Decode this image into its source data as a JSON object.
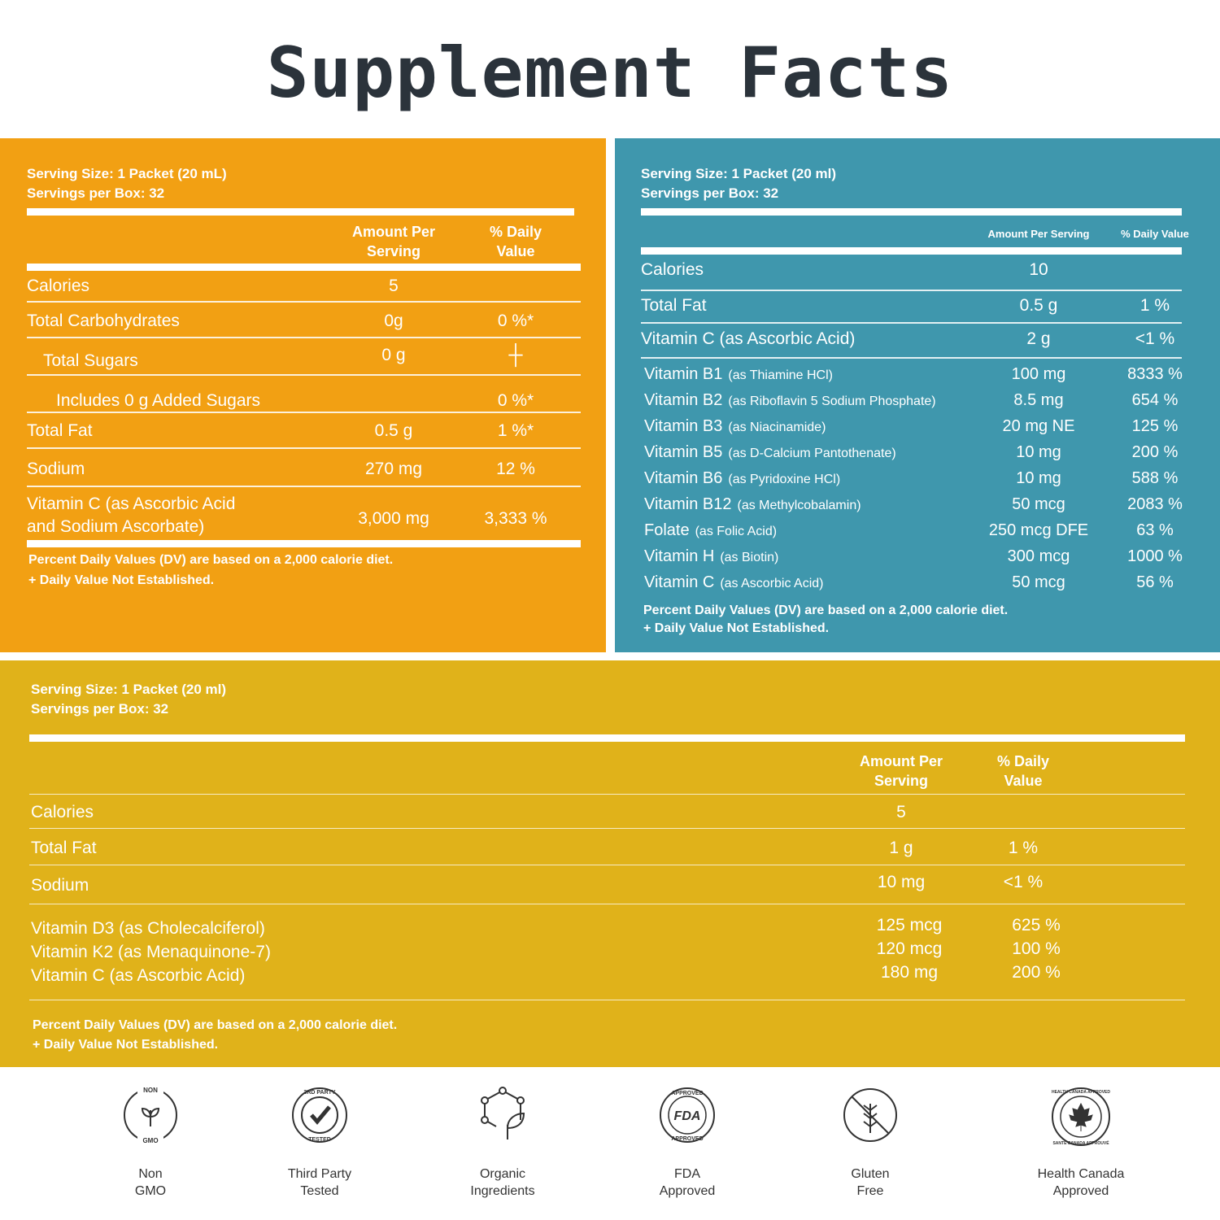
{
  "title": "Supplement Facts",
  "colors": {
    "orange": "#f2a013",
    "blue": "#3f97ad",
    "yellow": "#e0b21a",
    "title": "#2b333b"
  },
  "panel1": {
    "serving_size": "Serving Size: 1 Packet (20 mL)",
    "servings_per_box": "Servings per Box: 32",
    "col_amount": [
      "Amount Per",
      "Serving"
    ],
    "col_dv": [
      "% Daily",
      "Value"
    ],
    "rows": [
      {
        "name": "Calories",
        "amount": "5",
        "dv": ""
      },
      {
        "name": "Total Carbohydrates",
        "amount": "0g",
        "dv": "0 %*"
      },
      {
        "name": "Total Sugars",
        "amount": "0 g",
        "dv": "┼"
      },
      {
        "name": "Includes 0 g Added Sugars",
        "amount": "",
        "dv": "0 %*"
      },
      {
        "name": "Total Fat",
        "amount": "0.5 g",
        "dv": "1 %*"
      },
      {
        "name": "Sodium",
        "amount": "270 mg",
        "dv": "12 %"
      },
      {
        "name": [
          "Vitamin C (as Ascorbic Acid",
          "and Sodium Ascorbate)"
        ],
        "amount": "3,000 mg",
        "dv": "3,333 %"
      }
    ],
    "footnote": [
      "Percent Daily Values (DV) are based on a 2,000 calorie diet.",
      "+ Daily Value Not Established."
    ]
  },
  "panel2": {
    "serving_size": "Serving Size: 1 Packet  (20 ml)",
    "servings_per_box": "Servings per Box: 32",
    "col_amount": "Amount Per Serving",
    "col_dv": "% Daily Value",
    "rows": [
      {
        "name": "Calories",
        "amount": "10",
        "dv": ""
      },
      {
        "name": "Total Fat",
        "amount": "0.5 g",
        "dv": "1 %"
      },
      {
        "name": "Vitamin C (as Ascorbic Acid)",
        "amount": "2 g",
        "dv": "<1 %"
      }
    ],
    "vitamins": [
      {
        "name": "Vitamin B1",
        "detail": "(as Thiamine HCl)",
        "amount": "100 mg",
        "dv": "8333 %"
      },
      {
        "name": "Vitamin B2",
        "detail": "(as Riboflavin 5 Sodium Phosphate)",
        "amount": "8.5 mg",
        "dv": "654 %"
      },
      {
        "name": "Vitamin B3",
        "detail": "(as Niacinamide)",
        "amount": "20 mg NE",
        "dv": "125 %"
      },
      {
        "name": "Vitamin B5",
        "detail": "(as D-Calcium Pantothenate)",
        "amount": "10 mg",
        "dv": "200 %"
      },
      {
        "name": "Vitamin B6",
        "detail": "(as Pyridoxine HCl)",
        "amount": "10 mg",
        "dv": "588 %"
      },
      {
        "name": "Vitamin B12",
        "detail": "(as Methylcobalamin)",
        "amount": "50 mcg",
        "dv": "2083 %"
      },
      {
        "name": "Folate",
        "detail": "(as Folic Acid)",
        "amount": "250 mcg DFE",
        "dv": "63 %"
      },
      {
        "name": "Vitamin H",
        "detail": "(as Biotin)",
        "amount": "300 mcg",
        "dv": "1000 %"
      },
      {
        "name": "Vitamin C",
        "detail": "(as Ascorbic Acid)",
        "amount": "50 mcg",
        "dv": "56 %"
      }
    ],
    "footnote": [
      "Percent Daily Values (DV) are based on a 2,000 calorie diet.",
      "+ Daily Value Not Established."
    ]
  },
  "panel3": {
    "serving_size": "Serving Size: 1 Packet (20 ml)",
    "servings_per_box": "Servings per Box: 32",
    "col_amount": [
      "Amount Per",
      "Serving"
    ],
    "col_dv": [
      "% Daily",
      "Value"
    ],
    "rows": [
      {
        "name": "Calories",
        "amount": "5",
        "dv": ""
      },
      {
        "name": "Total Fat",
        "amount": "1 g",
        "dv": "1 %"
      },
      {
        "name": "Sodium",
        "amount": "10 mg",
        "dv": "<1 %"
      }
    ],
    "vitamins": [
      {
        "name": "Vitamin D3 (as Cholecalciferol)",
        "amount": "125 mcg",
        "dv": "625 %"
      },
      {
        "name": "Vitamin K2 (as Menaquinone-7)",
        "amount": "120 mcg",
        "dv": "100 %"
      },
      {
        "name": "Vitamin C (as Ascorbic Acid)",
        "amount": "180 mg",
        "dv": "200 %"
      }
    ],
    "footnote": [
      "Percent Daily Values (DV) are based on a 2,000 calorie diet.",
      "+ Daily Value Not Established."
    ]
  },
  "badges": [
    {
      "icon": "non-gmo-icon",
      "lines": [
        "Non",
        "GMO"
      ],
      "ring_top": "NON",
      "ring_bottom": "GMO"
    },
    {
      "icon": "third-party-tested-icon",
      "lines": [
        "Third Party",
        "Tested"
      ],
      "ring_top": "3RD PARTY",
      "ring_bottom": "TESTED"
    },
    {
      "icon": "organic-ingredients-icon",
      "lines": [
        "Organic",
        "Ingredients"
      ]
    },
    {
      "icon": "fda-approved-icon",
      "lines": [
        "FDA",
        "Approved"
      ],
      "ring_top": "APPROVED",
      "ring_bottom": "APPROVED",
      "center": "FDA"
    },
    {
      "icon": "gluten-free-icon",
      "lines": [
        "Gluten",
        "Free"
      ]
    },
    {
      "icon": "health-canada-icon",
      "lines": [
        "Health Canada",
        "Approved"
      ],
      "ring_top": "HEALTH CANADA APPROVED",
      "ring_bottom": "SANTÉ CANADA APPROUVÉ"
    }
  ]
}
